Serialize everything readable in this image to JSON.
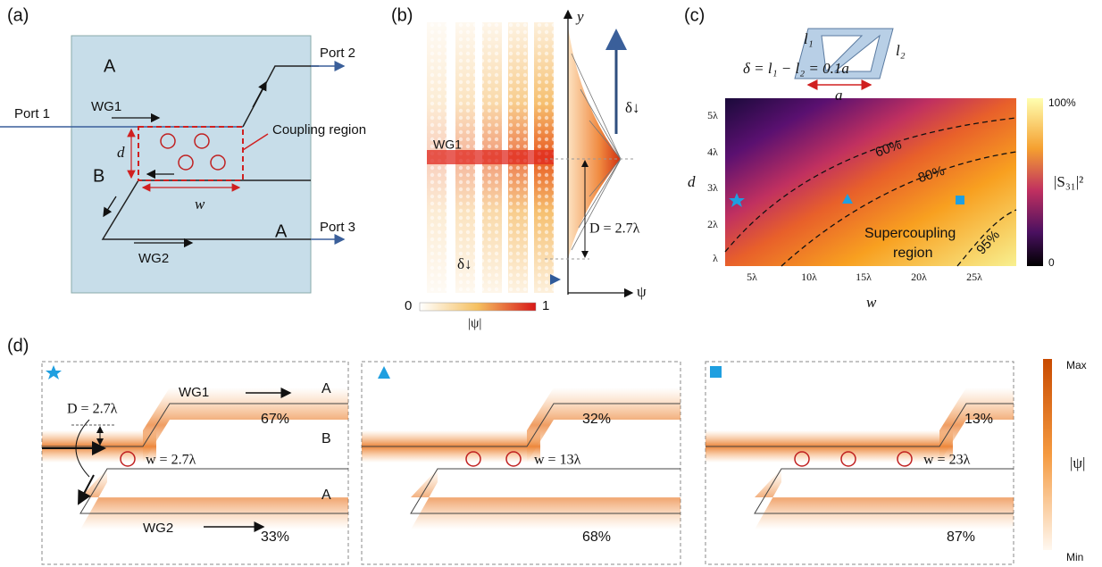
{
  "panel_a": {
    "label": "(a)",
    "region_labels": [
      "A",
      "B",
      "A"
    ],
    "ports": [
      "Port 1",
      "Port 2",
      "Port 3"
    ],
    "waveguides": [
      "WG1",
      "WG2"
    ],
    "coupling_region": "Coupling region",
    "d": "d",
    "w": "w"
  },
  "panel_b": {
    "label": "(b)",
    "waveguide": "WG1",
    "delta": [
      "δ↓",
      "δ↓"
    ],
    "D": "D = 2.7λ",
    "y_axis": "y",
    "x_axis": "ψ",
    "colorbar": {
      "min": "0",
      "max": "1",
      "label": "|ψ|"
    }
  },
  "panel_c": {
    "label": "(c)",
    "formula": "δ = l₁ − l₂ = 0.1a",
    "inset": [
      "l₁",
      "l₂",
      "a"
    ],
    "y_label": "d",
    "x_label": "w",
    "yticks": [
      "5λ",
      "4λ",
      "3λ",
      "2λ",
      "λ"
    ],
    "xticks": [
      "5λ",
      "10λ",
      "15λ",
      "20λ",
      "25λ"
    ],
    "contours": [
      "60%",
      "80%",
      "95%"
    ],
    "region": [
      "Supercoupling",
      "region"
    ],
    "colorbar": {
      "max": "100%",
      "min": "0",
      "label": "|S₃₁|²"
    }
  },
  "panel_d": {
    "label": "(d)",
    "waveguides": [
      "WG1",
      "WG2"
    ],
    "regions": [
      "A",
      "B",
      "A"
    ],
    "D": "D = 2.7λ",
    "fields": [
      {
        "top": "67%",
        "bottom": "33%",
        "w": "w = 2.7λ"
      },
      {
        "top": "32%",
        "bottom": "68%",
        "w": "w = 13λ"
      },
      {
        "top": "13%",
        "bottom": "87%",
        "w": "w = 23λ"
      }
    ],
    "colorbar": {
      "max": "Max",
      "min": "Min",
      "label": "|ψ|"
    }
  }
}
